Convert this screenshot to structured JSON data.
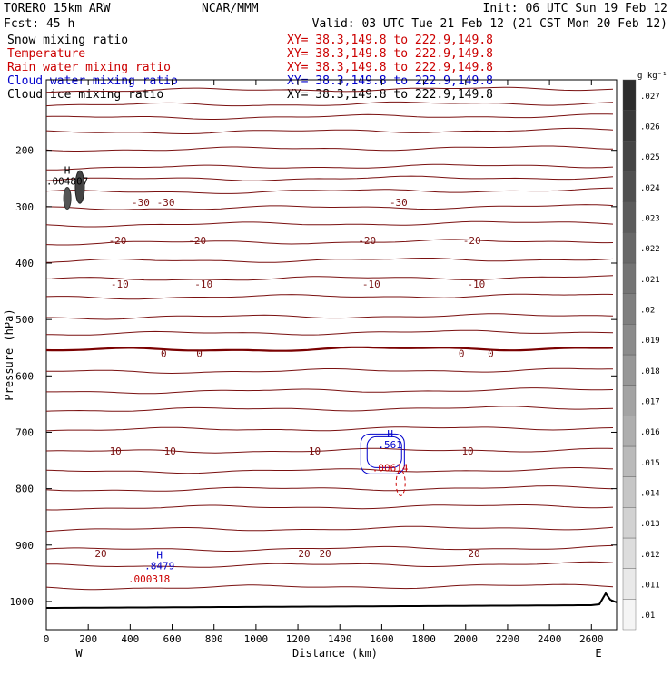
{
  "header": {
    "model": "TORERO  15km ARW",
    "forecast": "Fcst:   45 h",
    "center": "NCAR/MMM",
    "init": "Init: 06 UTC Sun 19 Feb 12",
    "valid": "Valid: 03 UTC Tue 21 Feb 12 (21 CST Mon 20 Feb 12)"
  },
  "fields": [
    {
      "name": "Snow mixing ratio",
      "xy": "XY=  38.3,149.8 to 222.9,149.8",
      "color": "#000000"
    },
    {
      "name": "Temperature",
      "xy": "XY=  38.3,149.8 to 222.9,149.8",
      "color": "#cc0000"
    },
    {
      "name": "Rain water mixing ratio",
      "xy": "XY=  38.3,149.8 to 222.9,149.8",
      "color": "#cc0000"
    },
    {
      "name": "Cloud water mixing ratio",
      "xy": "XY=  38.3,149.8 to 222.9,149.8",
      "color": "#0000cc"
    },
    {
      "name": "Cloud ice mixing ratio",
      "xy": "XY=  38.3,149.8 to 222.9,149.8",
      "color": "#000000"
    }
  ],
  "colorbar": {
    "unit": "g kg⁻¹",
    "ticks": [
      ".01",
      ".011",
      ".012",
      ".013",
      ".014",
      ".015",
      ".016",
      ".017",
      ".018",
      ".019",
      ".02",
      ".021",
      ".022",
      ".023",
      ".024",
      ".025",
      ".026",
      ".027"
    ]
  },
  "chart_data": {
    "type": "contour cross-section",
    "xlabel": "Distance (km)",
    "ylabel": "Pressure (hPa)",
    "x_ticks": [
      0,
      200,
      400,
      600,
      800,
      1000,
      1200,
      1400,
      1600,
      1800,
      2000,
      2200,
      2400,
      2600
    ],
    "x_tick_labels": [
      "0",
      "200",
      "400",
      "600",
      "800",
      "1000",
      "1200",
      "1400",
      "1600",
      "1800",
      "2000",
      "2200",
      "2400",
      "2600"
    ],
    "xlim": [
      0,
      2720
    ],
    "y_ticks": [
      200,
      300,
      400,
      500,
      600,
      700,
      800,
      900,
      1000
    ],
    "y_tick_labels": [
      "200",
      "300",
      "400",
      "500",
      "600",
      "700",
      "800",
      "900",
      "1000"
    ],
    "ylim": [
      1050,
      75
    ],
    "end_labels": {
      "left": "W",
      "right": "E"
    },
    "temperature_contours": [
      {
        "level": -30,
        "labels": [
          {
            "x": 450,
            "text": "-30"
          },
          {
            "x": 570,
            "text": "-30"
          },
          {
            "x": 1680,
            "text": "-30"
          }
        ]
      },
      {
        "level": -20,
        "labels": [
          {
            "x": 340,
            "text": "-20"
          },
          {
            "x": 720,
            "text": "-20"
          },
          {
            "x": 1530,
            "text": "-20"
          },
          {
            "x": 2030,
            "text": "-20"
          }
        ]
      },
      {
        "level": -10,
        "labels": [
          {
            "x": 350,
            "text": "-10"
          },
          {
            "x": 750,
            "text": "-10"
          },
          {
            "x": 1550,
            "text": "-10"
          },
          {
            "x": 2050,
            "text": "-10"
          }
        ]
      },
      {
        "level": 0,
        "labels": [
          {
            "x": 560,
            "text": "0"
          },
          {
            "x": 730,
            "text": "0"
          },
          {
            "x": 1980,
            "text": "0"
          },
          {
            "x": 2120,
            "text": "0"
          }
        ]
      },
      {
        "level": 10,
        "labels": [
          {
            "x": 330,
            "text": "10"
          },
          {
            "x": 590,
            "text": "10"
          },
          {
            "x": 1280,
            "text": "10"
          },
          {
            "x": 2010,
            "text": "10"
          }
        ]
      },
      {
        "level": 20,
        "labels": [
          {
            "x": 260,
            "text": "20"
          },
          {
            "x": 1230,
            "text": "20"
          },
          {
            "x": 1330,
            "text": "20"
          },
          {
            "x": 2040,
            "text": "20"
          }
        ]
      }
    ],
    "annotations": [
      {
        "kind": "max",
        "text": "H",
        "value": ".004807",
        "x": 100,
        "p": 258,
        "color": "#000000"
      },
      {
        "kind": "max",
        "text": "H",
        "value": ".561",
        "x": 1640,
        "p": 725,
        "color": "#0000cc"
      },
      {
        "kind": "rain-value",
        "text": ".00614",
        "x": 1640,
        "p": 763,
        "color": "#cc0000"
      },
      {
        "kind": "max",
        "text": "H",
        "value": ".8479",
        "x": 540,
        "p": 940,
        "color": "#0000cc"
      },
      {
        "kind": "rain-value",
        "text": ".000318",
        "x": 490,
        "p": 960,
        "color": "#cc0000"
      }
    ]
  }
}
